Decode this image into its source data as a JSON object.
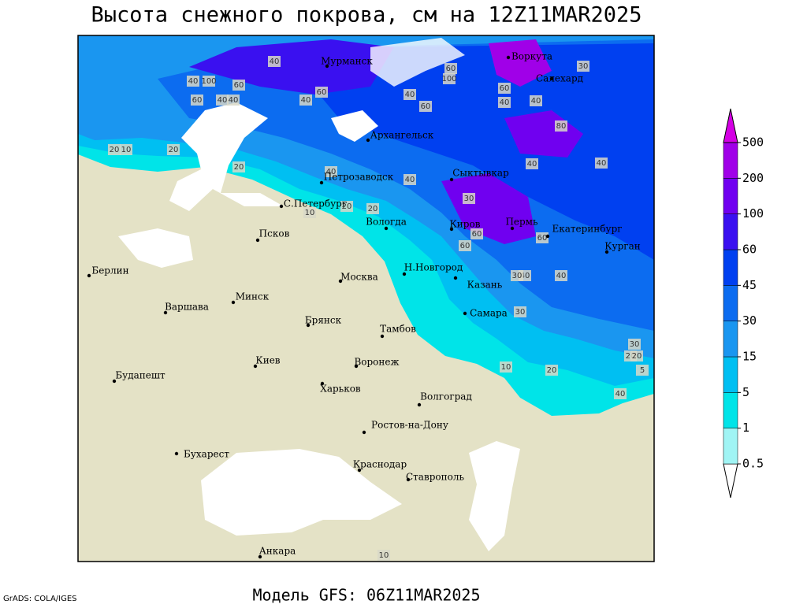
{
  "title": "Высота снежного покрова, см на 12Z11MAR2025",
  "footer": "Модель GFS: 06Z11MAR2025",
  "credit": "GrADS: COLA/IGES",
  "cities": [
    "Мурманск",
    "Воркута",
    "Салехард",
    "Архангельск",
    "Сыктывкар",
    "Петрозаводск",
    "С.Петербург",
    "Вологда",
    "Киров",
    "Пермь",
    "Екатеринбург",
    "Курган",
    "Псков",
    "Берлин",
    "Н.Новгород",
    "Казань",
    "Москва",
    "Минск",
    "Варшава",
    "Самара",
    "Брянск",
    "Тамбов",
    "Киев",
    "Воронеж",
    "Будапешт",
    "Харьков",
    "Волгоград",
    "Ростов-на-Дону",
    "Бухарест",
    "Краснодар",
    "Ставрополь",
    "Анкара"
  ],
  "contour_labels": [
    40,
    100,
    60,
    40,
    20,
    10,
    20,
    40,
    60,
    40,
    40,
    60,
    20,
    40,
    60,
    40,
    100,
    60,
    60,
    40,
    40,
    30,
    20,
    10,
    20,
    30,
    60,
    40,
    60,
    40,
    30,
    40,
    30,
    20,
    10,
    20,
    5,
    30,
    20,
    40,
    10,
    40,
    60,
    80,
    40
  ],
  "colorbar": {
    "levels": [
      0.5,
      1,
      5,
      15,
      30,
      45,
      60,
      100,
      200,
      500
    ],
    "colors": [
      "#ffffff",
      "#a0f4f4",
      "#00e4e8",
      "#00bff2",
      "#1a96f0",
      "#0c6cf0",
      "#0040f0",
      "#3a10f0",
      "#7000f0",
      "#a000e8",
      "#d400e4"
    ]
  }
}
